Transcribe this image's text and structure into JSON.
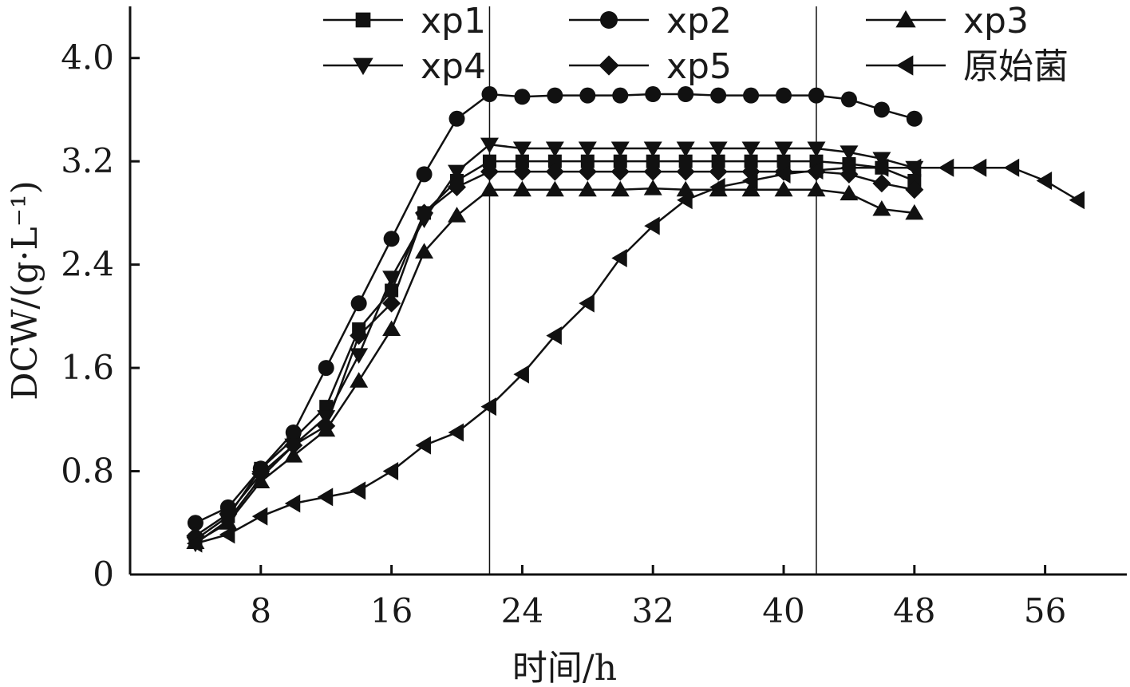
{
  "chart_data": {
    "type": "line",
    "xlabel": "时间/h",
    "ylabel": "DCW/(g·L⁻¹)",
    "xlim": [
      0,
      61
    ],
    "ylim": [
      0,
      4.4
    ],
    "xticks": [
      8,
      16,
      24,
      32,
      40,
      48,
      56
    ],
    "xtick_labels": [
      "8",
      "16",
      "24",
      "32",
      "40",
      "48",
      "56"
    ],
    "yticks": [
      0,
      0.8,
      1.6,
      2.4,
      3.2,
      4.0
    ],
    "ytick_labels": [
      "0",
      "0.8",
      "1.6",
      "2.4",
      "3.2",
      "4.0"
    ],
    "vlines": [
      22,
      42
    ],
    "grid": false,
    "legend_position": "top",
    "series": [
      {
        "name": "xp1",
        "marker": "square",
        "x": [
          4,
          6,
          8,
          10,
          12,
          14,
          16,
          18,
          20,
          22,
          24,
          26,
          28,
          30,
          32,
          34,
          36,
          38,
          40,
          42,
          44,
          46,
          48
        ],
        "y": [
          0.27,
          0.45,
          0.82,
          1.05,
          1.3,
          1.9,
          2.2,
          2.8,
          3.05,
          3.2,
          3.2,
          3.2,
          3.2,
          3.2,
          3.2,
          3.2,
          3.2,
          3.2,
          3.2,
          3.2,
          3.18,
          3.15,
          3.05
        ]
      },
      {
        "name": "xp2",
        "marker": "circle",
        "x": [
          4,
          6,
          8,
          10,
          12,
          14,
          16,
          18,
          20,
          22,
          24,
          26,
          28,
          30,
          32,
          34,
          36,
          38,
          40,
          42,
          44,
          46,
          48
        ],
        "y": [
          0.4,
          0.52,
          0.82,
          1.1,
          1.6,
          2.1,
          2.6,
          3.1,
          3.53,
          3.72,
          3.7,
          3.71,
          3.71,
          3.71,
          3.72,
          3.72,
          3.71,
          3.71,
          3.71,
          3.71,
          3.68,
          3.6,
          3.53
        ]
      },
      {
        "name": "xp3",
        "marker": "triangle-up",
        "x": [
          4,
          6,
          8,
          10,
          12,
          14,
          16,
          18,
          20,
          22,
          24,
          26,
          28,
          30,
          32,
          34,
          36,
          38,
          40,
          42,
          44,
          46,
          48
        ],
        "y": [
          0.25,
          0.4,
          0.72,
          0.92,
          1.12,
          1.5,
          1.9,
          2.5,
          2.78,
          2.98,
          2.98,
          2.98,
          2.98,
          2.98,
          2.99,
          2.98,
          2.98,
          2.98,
          2.98,
          2.98,
          2.95,
          2.83,
          2.8
        ]
      },
      {
        "name": "xp4",
        "marker": "triangle-down",
        "x": [
          4,
          6,
          8,
          10,
          12,
          14,
          16,
          18,
          20,
          22,
          24,
          26,
          28,
          30,
          32,
          34,
          36,
          38,
          40,
          42,
          44,
          46,
          48
        ],
        "y": [
          0.24,
          0.42,
          0.75,
          1.0,
          1.22,
          1.7,
          2.3,
          2.75,
          3.12,
          3.33,
          3.3,
          3.3,
          3.3,
          3.3,
          3.3,
          3.3,
          3.3,
          3.3,
          3.3,
          3.3,
          3.27,
          3.22,
          3.15
        ]
      },
      {
        "name": "xp5",
        "marker": "diamond",
        "x": [
          4,
          6,
          8,
          10,
          12,
          14,
          16,
          18,
          20,
          22,
          24,
          26,
          28,
          30,
          32,
          34,
          36,
          38,
          40,
          42,
          44,
          46,
          48
        ],
        "y": [
          0.3,
          0.47,
          0.78,
          1.0,
          1.15,
          1.85,
          2.1,
          2.8,
          3.0,
          3.12,
          3.12,
          3.12,
          3.12,
          3.12,
          3.12,
          3.12,
          3.12,
          3.12,
          3.12,
          3.12,
          3.1,
          3.03,
          2.98
        ]
      },
      {
        "name": "原始菌",
        "marker": "triangle-left",
        "x": [
          4,
          6,
          8,
          10,
          12,
          14,
          16,
          18,
          20,
          22,
          24,
          26,
          28,
          30,
          32,
          34,
          36,
          38,
          40,
          42,
          44,
          46,
          48,
          50,
          52,
          54,
          56,
          58
        ],
        "y": [
          0.24,
          0.31,
          0.45,
          0.55,
          0.6,
          0.65,
          0.8,
          1.0,
          1.1,
          1.3,
          1.55,
          1.85,
          2.1,
          2.45,
          2.7,
          2.9,
          3.0,
          3.05,
          3.1,
          3.13,
          3.15,
          3.15,
          3.15,
          3.15,
          3.15,
          3.15,
          3.05,
          2.9
        ]
      }
    ]
  }
}
